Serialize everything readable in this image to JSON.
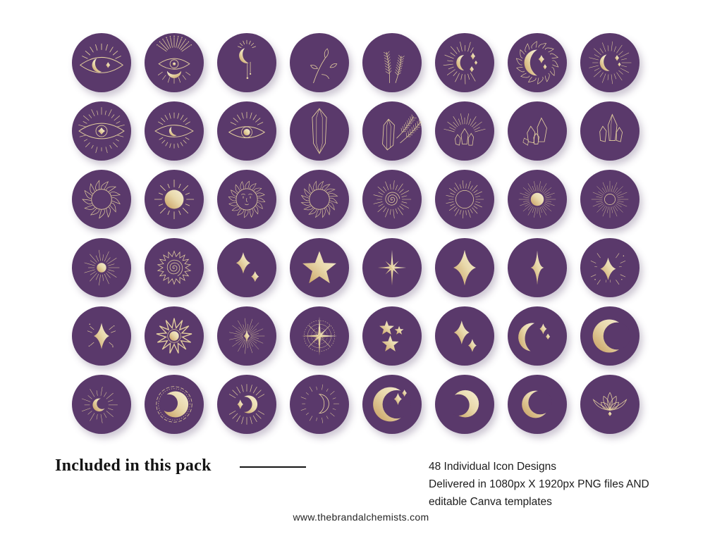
{
  "page": {
    "background": "#ffffff"
  },
  "colors": {
    "circle_purple": "#5a396b",
    "gold_stroke": "#e4cf9e",
    "gold_gradient": [
      "#c69c5d",
      "#e9d9ac",
      "#f6efd3"
    ],
    "text_dark": "#141414"
  },
  "footer": {
    "heading": "Included in this pack",
    "details_lines": [
      "48 Individual Icon Designs",
      "Delivered in 1080px X 1920px PNG files AND",
      "editable Canva templates"
    ],
    "website": "www.thebrandalchemists.com"
  },
  "icon_count": "48",
  "icons": [
    {
      "name": "eye-crescent-lashes"
    },
    {
      "name": "eye-ray-crown"
    },
    {
      "name": "crescent-pendant"
    },
    {
      "name": "leaf-sprig"
    },
    {
      "name": "lavender-sprigs"
    },
    {
      "name": "crescent-rays-sparkles"
    },
    {
      "name": "moon-in-leafy-sun"
    },
    {
      "name": "crescent-starburst"
    },
    {
      "name": "eye-star-iris-radiant"
    },
    {
      "name": "eye-crescent-iris"
    },
    {
      "name": "eye-dot-iris"
    },
    {
      "name": "crystal-prism"
    },
    {
      "name": "crystal-lavender"
    },
    {
      "name": "crystal-cluster-rays"
    },
    {
      "name": "crystal-cluster"
    },
    {
      "name": "crystal-cluster-tall"
    },
    {
      "name": "sun-leafy-ring"
    },
    {
      "name": "sun-filled-rays"
    },
    {
      "name": "sun-face"
    },
    {
      "name": "sun-leafy-ring-2"
    },
    {
      "name": "sun-spiral-rays"
    },
    {
      "name": "sun-ring-dense-rays"
    },
    {
      "name": "sun-filled-fine-burst"
    },
    {
      "name": "sun-ring-fine-burst"
    },
    {
      "name": "sun-dot-burst"
    },
    {
      "name": "sun-spiral-zigzag"
    },
    {
      "name": "sparkle-pair"
    },
    {
      "name": "star-filled"
    },
    {
      "name": "starburst-sparkle"
    },
    {
      "name": "sparkle-diamond"
    },
    {
      "name": "sparkle-thin"
    },
    {
      "name": "sparkle-radiant"
    },
    {
      "name": "sparkle-accents"
    },
    {
      "name": "sun-zigzag-core"
    },
    {
      "name": "starburst-fine"
    },
    {
      "name": "compass-star"
    },
    {
      "name": "stars-trio"
    },
    {
      "name": "sparkle-duo"
    },
    {
      "name": "crescent-two-sparkles"
    },
    {
      "name": "crescent-bold"
    },
    {
      "name": "crescent-small-rays"
    },
    {
      "name": "moon-dashed-ring"
    },
    {
      "name": "crescent-sparkle-rays"
    },
    {
      "name": "crescent-outline-rays"
    },
    {
      "name": "crescent-sparkles-large"
    },
    {
      "name": "crescent-thick"
    },
    {
      "name": "crescent-thin"
    },
    {
      "name": "lotus"
    }
  ]
}
